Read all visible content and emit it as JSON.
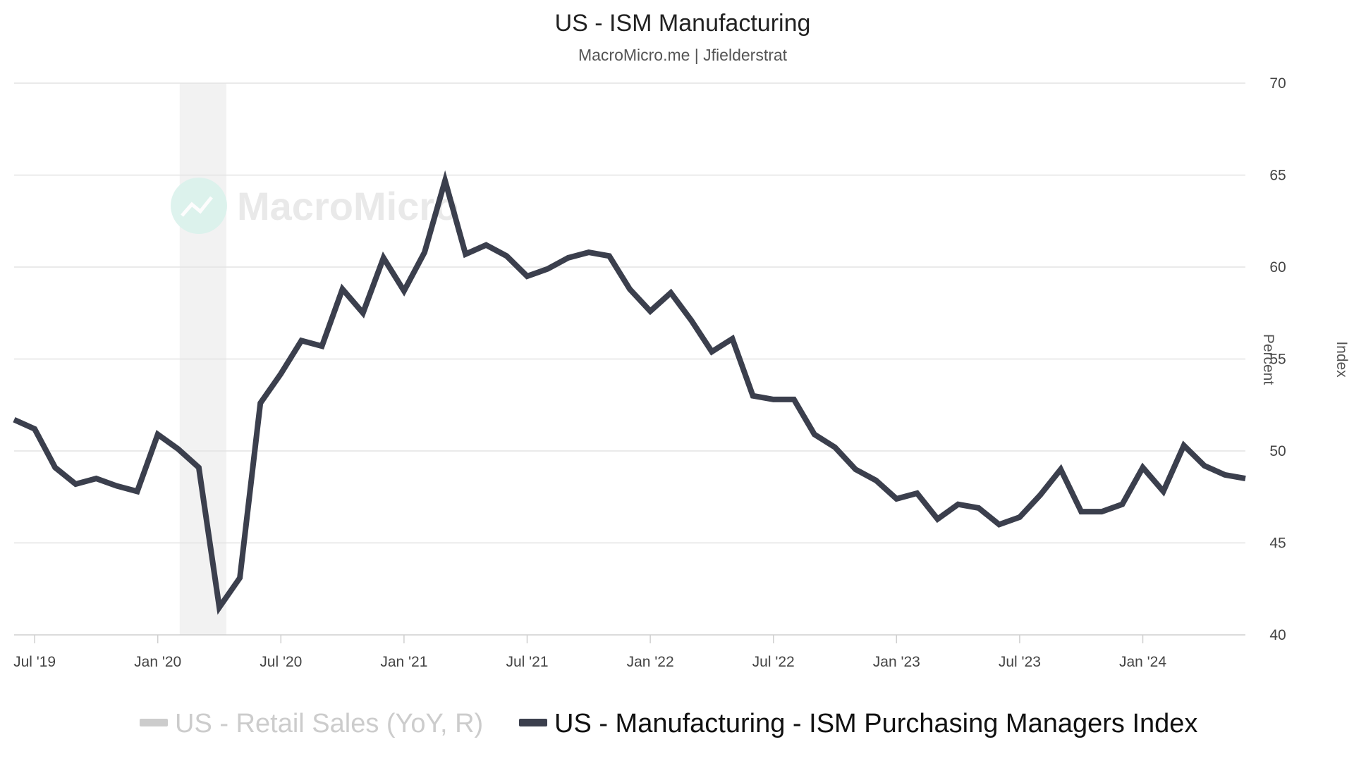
{
  "chart_data": {
    "type": "line",
    "title": "US - ISM Manufacturing",
    "subtitle": "MacroMicro.me | Jfielderstrat",
    "watermark": "MacroMicro",
    "x_tick_labels": [
      "Jul '19",
      "Jan '20",
      "Jul '20",
      "Jan '21",
      "Jul '21",
      "Jan '22",
      "Jul '22",
      "Jan '23",
      "Jul '23",
      "Jan '24"
    ],
    "y_ticks": [
      40,
      45,
      50,
      55,
      60,
      65,
      70
    ],
    "ylim": [
      40,
      70
    ],
    "xlim": [
      "2019-06",
      "2024-06"
    ],
    "ylabel_left": "Percent",
    "ylabel_right": "Index",
    "grid": true,
    "legend_position": "bottom",
    "recession_band": {
      "start": "2020-02",
      "end": "2020-04",
      "color": "#f2f2f2"
    },
    "series": [
      {
        "name": "US - Retail Sales (YoY, R)",
        "color": "#cccccc",
        "visible": false,
        "x": [],
        "values": []
      },
      {
        "name": "US - Manufacturing - ISM Purchasing Managers Index",
        "color": "#3b3f4d",
        "visible": true,
        "x": [
          "2019-06",
          "2019-07",
          "2019-08",
          "2019-09",
          "2019-10",
          "2019-11",
          "2019-12",
          "2020-01",
          "2020-02",
          "2020-03",
          "2020-04",
          "2020-05",
          "2020-06",
          "2020-07",
          "2020-08",
          "2020-09",
          "2020-10",
          "2020-11",
          "2020-12",
          "2021-01",
          "2021-02",
          "2021-03",
          "2021-04",
          "2021-05",
          "2021-06",
          "2021-07",
          "2021-08",
          "2021-09",
          "2021-10",
          "2021-11",
          "2021-12",
          "2022-01",
          "2022-02",
          "2022-03",
          "2022-04",
          "2022-05",
          "2022-06",
          "2022-07",
          "2022-08",
          "2022-09",
          "2022-10",
          "2022-11",
          "2022-12",
          "2023-01",
          "2023-02",
          "2023-03",
          "2023-04",
          "2023-05",
          "2023-06",
          "2023-07",
          "2023-08",
          "2023-09",
          "2023-10",
          "2023-11",
          "2023-12",
          "2024-01",
          "2024-02",
          "2024-03",
          "2024-04",
          "2024-05",
          "2024-06"
        ],
        "values": [
          51.7,
          51.2,
          49.1,
          48.2,
          48.5,
          48.1,
          47.8,
          50.9,
          50.1,
          49.1,
          41.5,
          43.1,
          52.6,
          54.2,
          56.0,
          55.7,
          58.8,
          57.5,
          60.5,
          58.7,
          60.8,
          64.7,
          60.7,
          61.2,
          60.6,
          59.5,
          59.9,
          60.5,
          60.8,
          60.6,
          58.8,
          57.6,
          58.6,
          57.1,
          55.4,
          56.1,
          53.0,
          52.8,
          52.8,
          50.9,
          50.2,
          49.0,
          48.4,
          47.4,
          47.7,
          46.3,
          47.1,
          46.9,
          46.0,
          46.4,
          47.6,
          49.0,
          46.7,
          46.7,
          47.1,
          49.1,
          47.8,
          50.3,
          49.2,
          48.7,
          48.5
        ]
      }
    ]
  }
}
